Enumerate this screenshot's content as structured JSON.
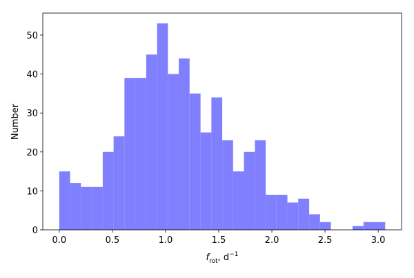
{
  "chart_data": {
    "type": "histogram",
    "bins": [
      0,
      0.102,
      0.204,
      0.307,
      0.409,
      0.511,
      0.613,
      0.715,
      0.818,
      0.92,
      1.022,
      1.124,
      1.226,
      1.329,
      1.431,
      1.533,
      1.635,
      1.737,
      1.84,
      1.942,
      2.044,
      2.146,
      2.248,
      2.351,
      2.453,
      2.555,
      2.657,
      2.759,
      2.862,
      2.964,
      3.066
    ],
    "counts": [
      15,
      12,
      11,
      11,
      20,
      24,
      39,
      39,
      45,
      53,
      40,
      44,
      35,
      25,
      34,
      23,
      15,
      20,
      23,
      9,
      9,
      7,
      8,
      4,
      2,
      0,
      0,
      1,
      2,
      2
    ],
    "color": "#8080ff",
    "x_label": {
      "symbol": "f",
      "subscript": "rot",
      "text": ", d",
      "superscript": "−1"
    },
    "y_label": "Number",
    "xlim": [
      -0.155,
      3.22
    ],
    "ylim": [
      0,
      55.65
    ],
    "xticks": [
      {
        "value": 0,
        "label": "0.0"
      },
      0.5,
      {
        "value": 1,
        "label": "1.0"
      },
      1.5,
      {
        "value": 2,
        "label": "2.0"
      },
      2.5,
      {
        "value": 3,
        "label": "3.0"
      }
    ],
    "yticks": [
      0,
      10,
      20,
      30,
      40,
      50
    ],
    "grid": false
  }
}
